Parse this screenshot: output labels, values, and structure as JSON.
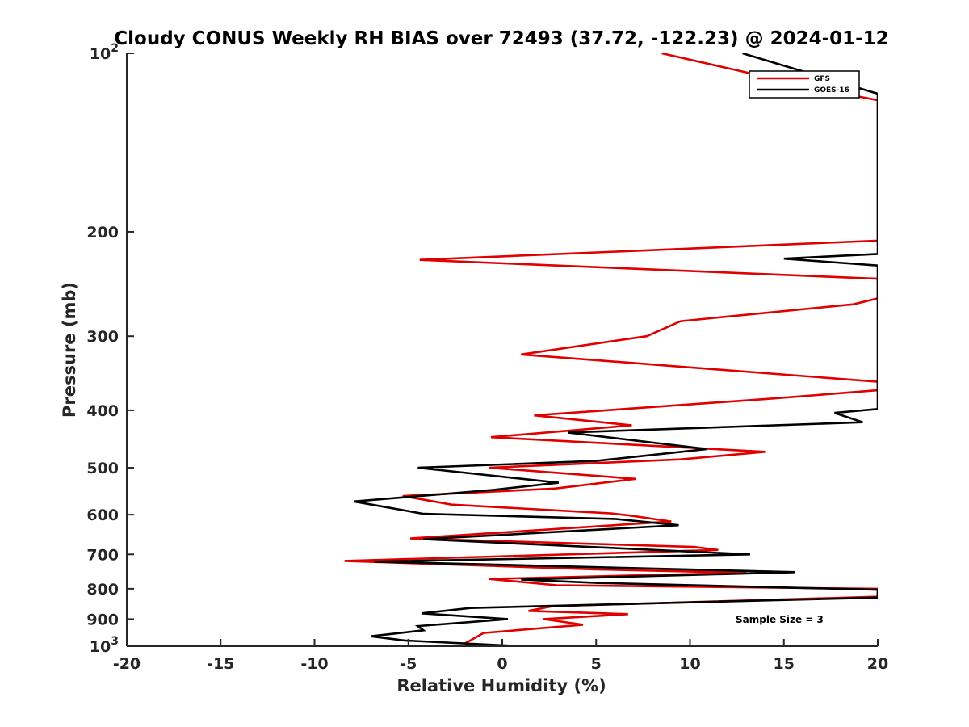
{
  "chart_data": {
    "type": "line",
    "title": "Cloudy CONUS Weekly RH BIAS over 72493 (37.72, -122.23) @ 2024-01-12",
    "xlabel": "Relative Humidity (%)",
    "ylabel": "Pressure (mb)",
    "xlim": [
      -20,
      20
    ],
    "ylim": [
      100,
      1000
    ],
    "y_scale": "log",
    "y_reversed": true,
    "xticks": [
      -20,
      -15,
      -10,
      -5,
      0,
      5,
      10,
      15,
      20
    ],
    "xtick_labels": [
      "-20",
      "-15",
      "-10",
      "-5",
      "0",
      "5",
      "10",
      "15",
      "20"
    ],
    "yticks": [
      {
        "value": 100,
        "base": "10",
        "exp": "2"
      },
      {
        "value": 200,
        "label": "200"
      },
      {
        "value": 300,
        "label": "300"
      },
      {
        "value": 400,
        "label": "400"
      },
      {
        "value": 500,
        "label": "500"
      },
      {
        "value": 600,
        "label": "600"
      },
      {
        "value": 700,
        "label": "700"
      },
      {
        "value": 800,
        "label": "800"
      },
      {
        "value": 900,
        "label": "900"
      },
      {
        "value": 1000,
        "base": "10",
        "exp": "3"
      }
    ],
    "legend_position": "top-right",
    "annotation": "Sample Size = 3",
    "series": [
      {
        "name": "GFS",
        "color": "#e00000",
        "points": [
          [
            8.5,
            100
          ],
          [
            17.0,
            115
          ],
          [
            20.0,
            120
          ],
          [
            20.0,
            207
          ],
          [
            -4.4,
            223
          ],
          [
            20.0,
            240
          ],
          [
            20.0,
            259
          ],
          [
            18.7,
            265
          ],
          [
            9.5,
            283
          ],
          [
            7.7,
            300
          ],
          [
            1.0,
            322
          ],
          [
            20.0,
            358
          ],
          [
            20.0,
            370
          ],
          [
            14.5,
            382
          ],
          [
            1.7,
            408
          ],
          [
            6.9,
            424
          ],
          [
            -0.6,
            444
          ],
          [
            14.0,
            470
          ],
          [
            9.5,
            484
          ],
          [
            -0.7,
            500
          ],
          [
            7.1,
            522
          ],
          [
            2.8,
            542
          ],
          [
            -5.3,
            558
          ],
          [
            -2.7,
            577
          ],
          [
            5.8,
            597
          ],
          [
            6.8,
            602
          ],
          [
            9.0,
            616
          ],
          [
            -4.9,
            658
          ],
          [
            10.2,
            680
          ],
          [
            11.5,
            688
          ],
          [
            -8.4,
            718
          ],
          [
            5.0,
            742
          ],
          [
            13.0,
            752
          ],
          [
            -0.7,
            770
          ],
          [
            2.9,
            789
          ],
          [
            20.0,
            800
          ],
          [
            20.0,
            825
          ],
          [
            2.7,
            856
          ],
          [
            1.4,
            872
          ],
          [
            6.7,
            883
          ],
          [
            2.2,
            900
          ],
          [
            4.3,
            920
          ],
          [
            -1.0,
            950
          ],
          [
            -2.0,
            990
          ]
        ]
      },
      {
        "name": "GOES-16",
        "color": "#000000",
        "points": [
          [
            12.8,
            100
          ],
          [
            20.0,
            117
          ],
          [
            20.0,
            218
          ],
          [
            15.0,
            222
          ],
          [
            20.0,
            228
          ],
          [
            20.0,
            398
          ],
          [
            17.7,
            404
          ],
          [
            19.2,
            419
          ],
          [
            3.5,
            436
          ],
          [
            10.9,
            465
          ],
          [
            5.0,
            487
          ],
          [
            -4.5,
            500
          ],
          [
            3.0,
            530
          ],
          [
            -0.5,
            545
          ],
          [
            -7.9,
            570
          ],
          [
            -4.2,
            598
          ],
          [
            6.0,
            610
          ],
          [
            9.4,
            625
          ],
          [
            -4.2,
            660
          ],
          [
            13.2,
            700
          ],
          [
            -6.8,
            720
          ],
          [
            15.6,
            750
          ],
          [
            1.0,
            772
          ],
          [
            5.0,
            782
          ],
          [
            20.0,
            803
          ],
          [
            20.0,
            828
          ],
          [
            -1.7,
            862
          ],
          [
            -4.3,
            880
          ],
          [
            0.3,
            900
          ],
          [
            -4.5,
            925
          ],
          [
            -4.2,
            940
          ],
          [
            -7.0,
            962
          ],
          [
            -5.2,
            978
          ],
          [
            1.0,
            1000
          ]
        ]
      }
    ]
  }
}
